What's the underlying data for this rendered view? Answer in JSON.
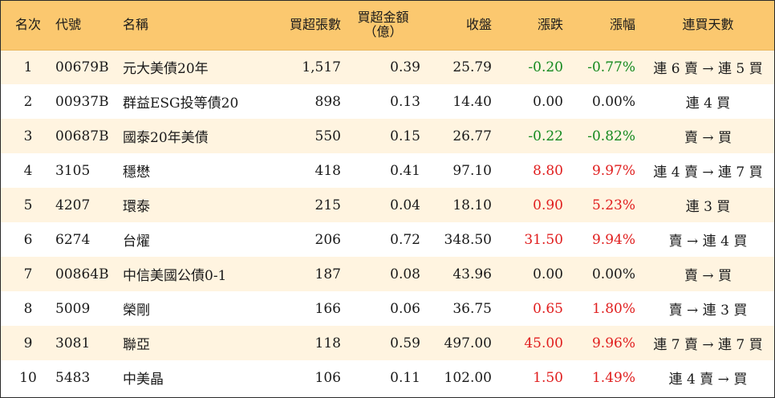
{
  "headers": {
    "rank": "名次",
    "code": "代號",
    "name": "名稱",
    "net_lots": "買超張數",
    "net_amount_line1": "買超金額",
    "net_amount_line2": "（億）",
    "close": "收盤",
    "change": "漲跌",
    "pct": "漲幅",
    "streak": "連買天數"
  },
  "rows": [
    {
      "rank": "1",
      "code": "00679B",
      "name": "元大美債20年",
      "lots": "1,517",
      "amount": "0.39",
      "close": "25.79",
      "change": "-0.20",
      "pct": "-0.77%",
      "streak": "連 6 賣 → 連 5 買",
      "dir": "neg"
    },
    {
      "rank": "2",
      "code": "00937B",
      "name": "群益ESG投等債20",
      "lots": "898",
      "amount": "0.13",
      "close": "14.40",
      "change": "0.00",
      "pct": "0.00%",
      "streak": "連 4 買",
      "dir": "zero"
    },
    {
      "rank": "3",
      "code": "00687B",
      "name": "國泰20年美債",
      "lots": "550",
      "amount": "0.15",
      "close": "26.77",
      "change": "-0.22",
      "pct": "-0.82%",
      "streak": "賣 → 買",
      "dir": "neg"
    },
    {
      "rank": "4",
      "code": "3105",
      "name": "穩懋",
      "lots": "418",
      "amount": "0.41",
      "close": "97.10",
      "change": "8.80",
      "pct": "9.97%",
      "streak": "連 4 賣 → 連 7 買",
      "dir": "pos"
    },
    {
      "rank": "5",
      "code": "4207",
      "name": "環泰",
      "lots": "215",
      "amount": "0.04",
      "close": "18.10",
      "change": "0.90",
      "pct": "5.23%",
      "streak": "連 3 買",
      "dir": "pos"
    },
    {
      "rank": "6",
      "code": "6274",
      "name": "台燿",
      "lots": "206",
      "amount": "0.72",
      "close": "348.50",
      "change": "31.50",
      "pct": "9.94%",
      "streak": "賣 → 連 4 買",
      "dir": "pos"
    },
    {
      "rank": "7",
      "code": "00864B",
      "name": "中信美國公債0-1",
      "lots": "187",
      "amount": "0.08",
      "close": "43.96",
      "change": "0.00",
      "pct": "0.00%",
      "streak": "賣 → 買",
      "dir": "zero"
    },
    {
      "rank": "8",
      "code": "5009",
      "name": "榮剛",
      "lots": "166",
      "amount": "0.06",
      "close": "36.75",
      "change": "0.65",
      "pct": "1.80%",
      "streak": "賣 → 連 3 買",
      "dir": "pos"
    },
    {
      "rank": "9",
      "code": "3081",
      "name": "聯亞",
      "lots": "118",
      "amount": "0.59",
      "close": "497.00",
      "change": "45.00",
      "pct": "9.96%",
      "streak": "連 7 賣 → 連 7 買",
      "dir": "pos"
    },
    {
      "rank": "10",
      "code": "5483",
      "name": "中美晶",
      "lots": "106",
      "amount": "0.11",
      "close": "102.00",
      "change": "1.50",
      "pct": "1.49%",
      "streak": "連 4 賣 → 買",
      "dir": "pos"
    }
  ],
  "colors": {
    "header_bg": "#fbc86f",
    "odd_row_bg": "#fff4e0",
    "up": "#e01e1e",
    "down": "#14891e"
  }
}
